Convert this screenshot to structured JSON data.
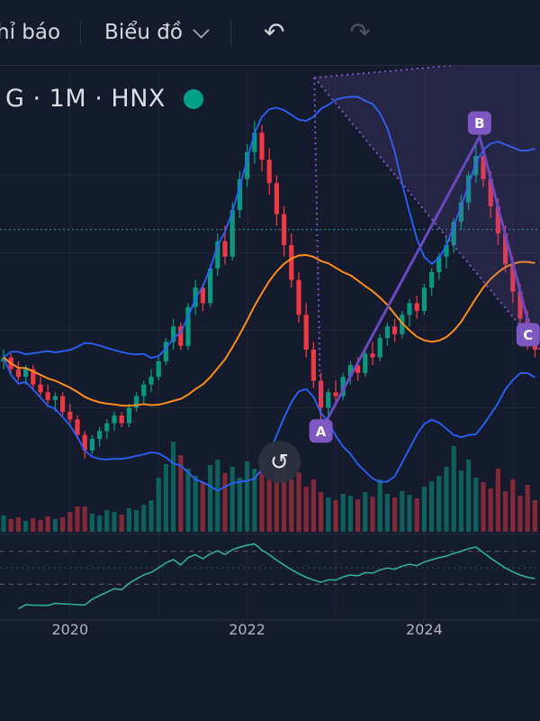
{
  "toolbar": {
    "indicators_label": "hỉ báo",
    "chart_type_label": "Biểu đồ",
    "undo_icon": "↶",
    "redo_icon": "↷"
  },
  "legend": {
    "symbol_text": "G · 1M · HNX",
    "status_dot_color": "#00a287"
  },
  "floating": {
    "refresh_icon": "↺"
  },
  "colors": {
    "background": "#141b2d",
    "up": "#089981",
    "down": "#f23645",
    "bb": "#2962ff",
    "basis": "#ff8d1a",
    "rsi": "#2fae96",
    "drawing": "#7e57c2",
    "drawing_solid": "#6a48c0",
    "price_line": "#26a69a",
    "axis_text": "#b2b5be",
    "grid": "rgba(255,255,255,0.05)"
  },
  "chart_data": {
    "type": "candlestick",
    "description": "Monthly candlestick chart (HNX stock) with Bollinger Bands, orange basis MA, volume bars, RSI lower pane, dotted price level line and a purple dotted triangle + solid A-B-C pattern drawing",
    "x_unit": "month index (m=0 ≈ Apr 2019, 1 candle per month)",
    "price_unit": "relative scale 0-100 (price axis not visible in screenshot)",
    "candles": [
      [
        37,
        40,
        35,
        38,
        18
      ],
      [
        38,
        39,
        34,
        35,
        14
      ],
      [
        35,
        37,
        32,
        33,
        16
      ],
      [
        33,
        36,
        31,
        35,
        12
      ],
      [
        35,
        36,
        30,
        31,
        15
      ],
      [
        31,
        33,
        28,
        29,
        13
      ],
      [
        29,
        31,
        26,
        27,
        17
      ],
      [
        27,
        29,
        24,
        28,
        14
      ],
      [
        28,
        29,
        23,
        24,
        16
      ],
      [
        24,
        26,
        21,
        22,
        22
      ],
      [
        22,
        23,
        17,
        18,
        28
      ],
      [
        18,
        19,
        12,
        14,
        28
      ],
      [
        14,
        18,
        13,
        17,
        20
      ],
      [
        17,
        20,
        15,
        19,
        18
      ],
      [
        19,
        22,
        17,
        21,
        24
      ],
      [
        21,
        24,
        19,
        23,
        22
      ],
      [
        23,
        24,
        20,
        21,
        19
      ],
      [
        21,
        26,
        20,
        25,
        26
      ],
      [
        25,
        29,
        24,
        28,
        24
      ],
      [
        28,
        32,
        26,
        31,
        30
      ],
      [
        31,
        35,
        29,
        33,
        35
      ],
      [
        33,
        38,
        32,
        37,
        60
      ],
      [
        37,
        43,
        36,
        42,
        75
      ],
      [
        42,
        48,
        40,
        46,
        100
      ],
      [
        46,
        47,
        40,
        41,
        85
      ],
      [
        41,
        52,
        40,
        51,
        70
      ],
      [
        51,
        58,
        49,
        56,
        62
      ],
      [
        56,
        57,
        50,
        52,
        55
      ],
      [
        52,
        62,
        51,
        61,
        74
      ],
      [
        61,
        70,
        59,
        68,
        80
      ],
      [
        68,
        72,
        62,
        64,
        65
      ],
      [
        64,
        78,
        63,
        76,
        72
      ],
      [
        76,
        86,
        74,
        84,
        60
      ],
      [
        84,
        93,
        82,
        91,
        78
      ],
      [
        91,
        99,
        88,
        96,
        70
      ],
      [
        96,
        98,
        86,
        89,
        85
      ],
      [
        89,
        92,
        80,
        83,
        60
      ],
      [
        83,
        85,
        72,
        75,
        68
      ],
      [
        75,
        77,
        64,
        67,
        75
      ],
      [
        67,
        70,
        56,
        58,
        58
      ],
      [
        58,
        60,
        47,
        49,
        66
      ],
      [
        49,
        52,
        38,
        40,
        50
      ],
      [
        40,
        42,
        30,
        32,
        58
      ],
      [
        32,
        34,
        22,
        25,
        44
      ],
      [
        25,
        30,
        23,
        29,
        38
      ],
      [
        29,
        32,
        26,
        28,
        35
      ],
      [
        28,
        34,
        27,
        33,
        42
      ],
      [
        33,
        37,
        31,
        36,
        40
      ],
      [
        36,
        38,
        32,
        34,
        36
      ],
      [
        34,
        40,
        33,
        39,
        44
      ],
      [
        39,
        42,
        36,
        38,
        39
      ],
      [
        38,
        44,
        37,
        43,
        58
      ],
      [
        43,
        47,
        41,
        46,
        42
      ],
      [
        46,
        48,
        42,
        44,
        38
      ],
      [
        44,
        50,
        43,
        49,
        45
      ],
      [
        49,
        53,
        46,
        52,
        41
      ],
      [
        52,
        54,
        48,
        50,
        37
      ],
      [
        50,
        57,
        49,
        56,
        50
      ],
      [
        56,
        61,
        54,
        60,
        56
      ],
      [
        60,
        65,
        58,
        64,
        62
      ],
      [
        64,
        69,
        61,
        67,
        72
      ],
      [
        67,
        74,
        65,
        73,
        95
      ],
      [
        73,
        80,
        71,
        78,
        68
      ],
      [
        78,
        86,
        76,
        85,
        80
      ],
      [
        85,
        93,
        83,
        90,
        60
      ],
      [
        90,
        92,
        82,
        84,
        55
      ],
      [
        84,
        86,
        74,
        77,
        48
      ],
      [
        77,
        79,
        67,
        70,
        70
      ],
      [
        70,
        72,
        60,
        62,
        45
      ],
      [
        62,
        64,
        52,
        55,
        58
      ],
      [
        55,
        57,
        46,
        48,
        40
      ],
      [
        48,
        50,
        40,
        43,
        52
      ],
      [
        43,
        45,
        38,
        40,
        35
      ]
    ],
    "candle_format": [
      "open",
      "high",
      "low",
      "close",
      "volume_rel"
    ],
    "indicators": {
      "bollinger": {
        "period": 20,
        "stddev": 2
      },
      "basis_ma": {
        "period": 20
      },
      "rsi": {
        "period": 14,
        "levels": [
          70,
          50,
          30
        ]
      }
    },
    "price_line": {
      "p": 71,
      "style": "dotted"
    },
    "drawing": {
      "apex": {
        "m": 42.1,
        "p": 110.2
      },
      "right_edge": {
        "top_p": 115.3,
        "bottom_p": 40
      },
      "points": [
        {
          "label": "A",
          "m": 43,
          "p": 19,
          "label_offset": [
            0,
            0
          ]
        },
        {
          "label": "B",
          "m": 64.5,
          "p": 95,
          "label_offset": [
            0,
            -15
          ]
        },
        {
          "label": "C",
          "m": 71.8,
          "p": 42,
          "label_offset": [
            -6,
            -8
          ]
        }
      ]
    },
    "time_ticks": [
      {
        "label": "2020",
        "m": 9
      },
      {
        "label": "2022",
        "m": 33
      },
      {
        "label": "2024",
        "m": 57
      }
    ]
  }
}
